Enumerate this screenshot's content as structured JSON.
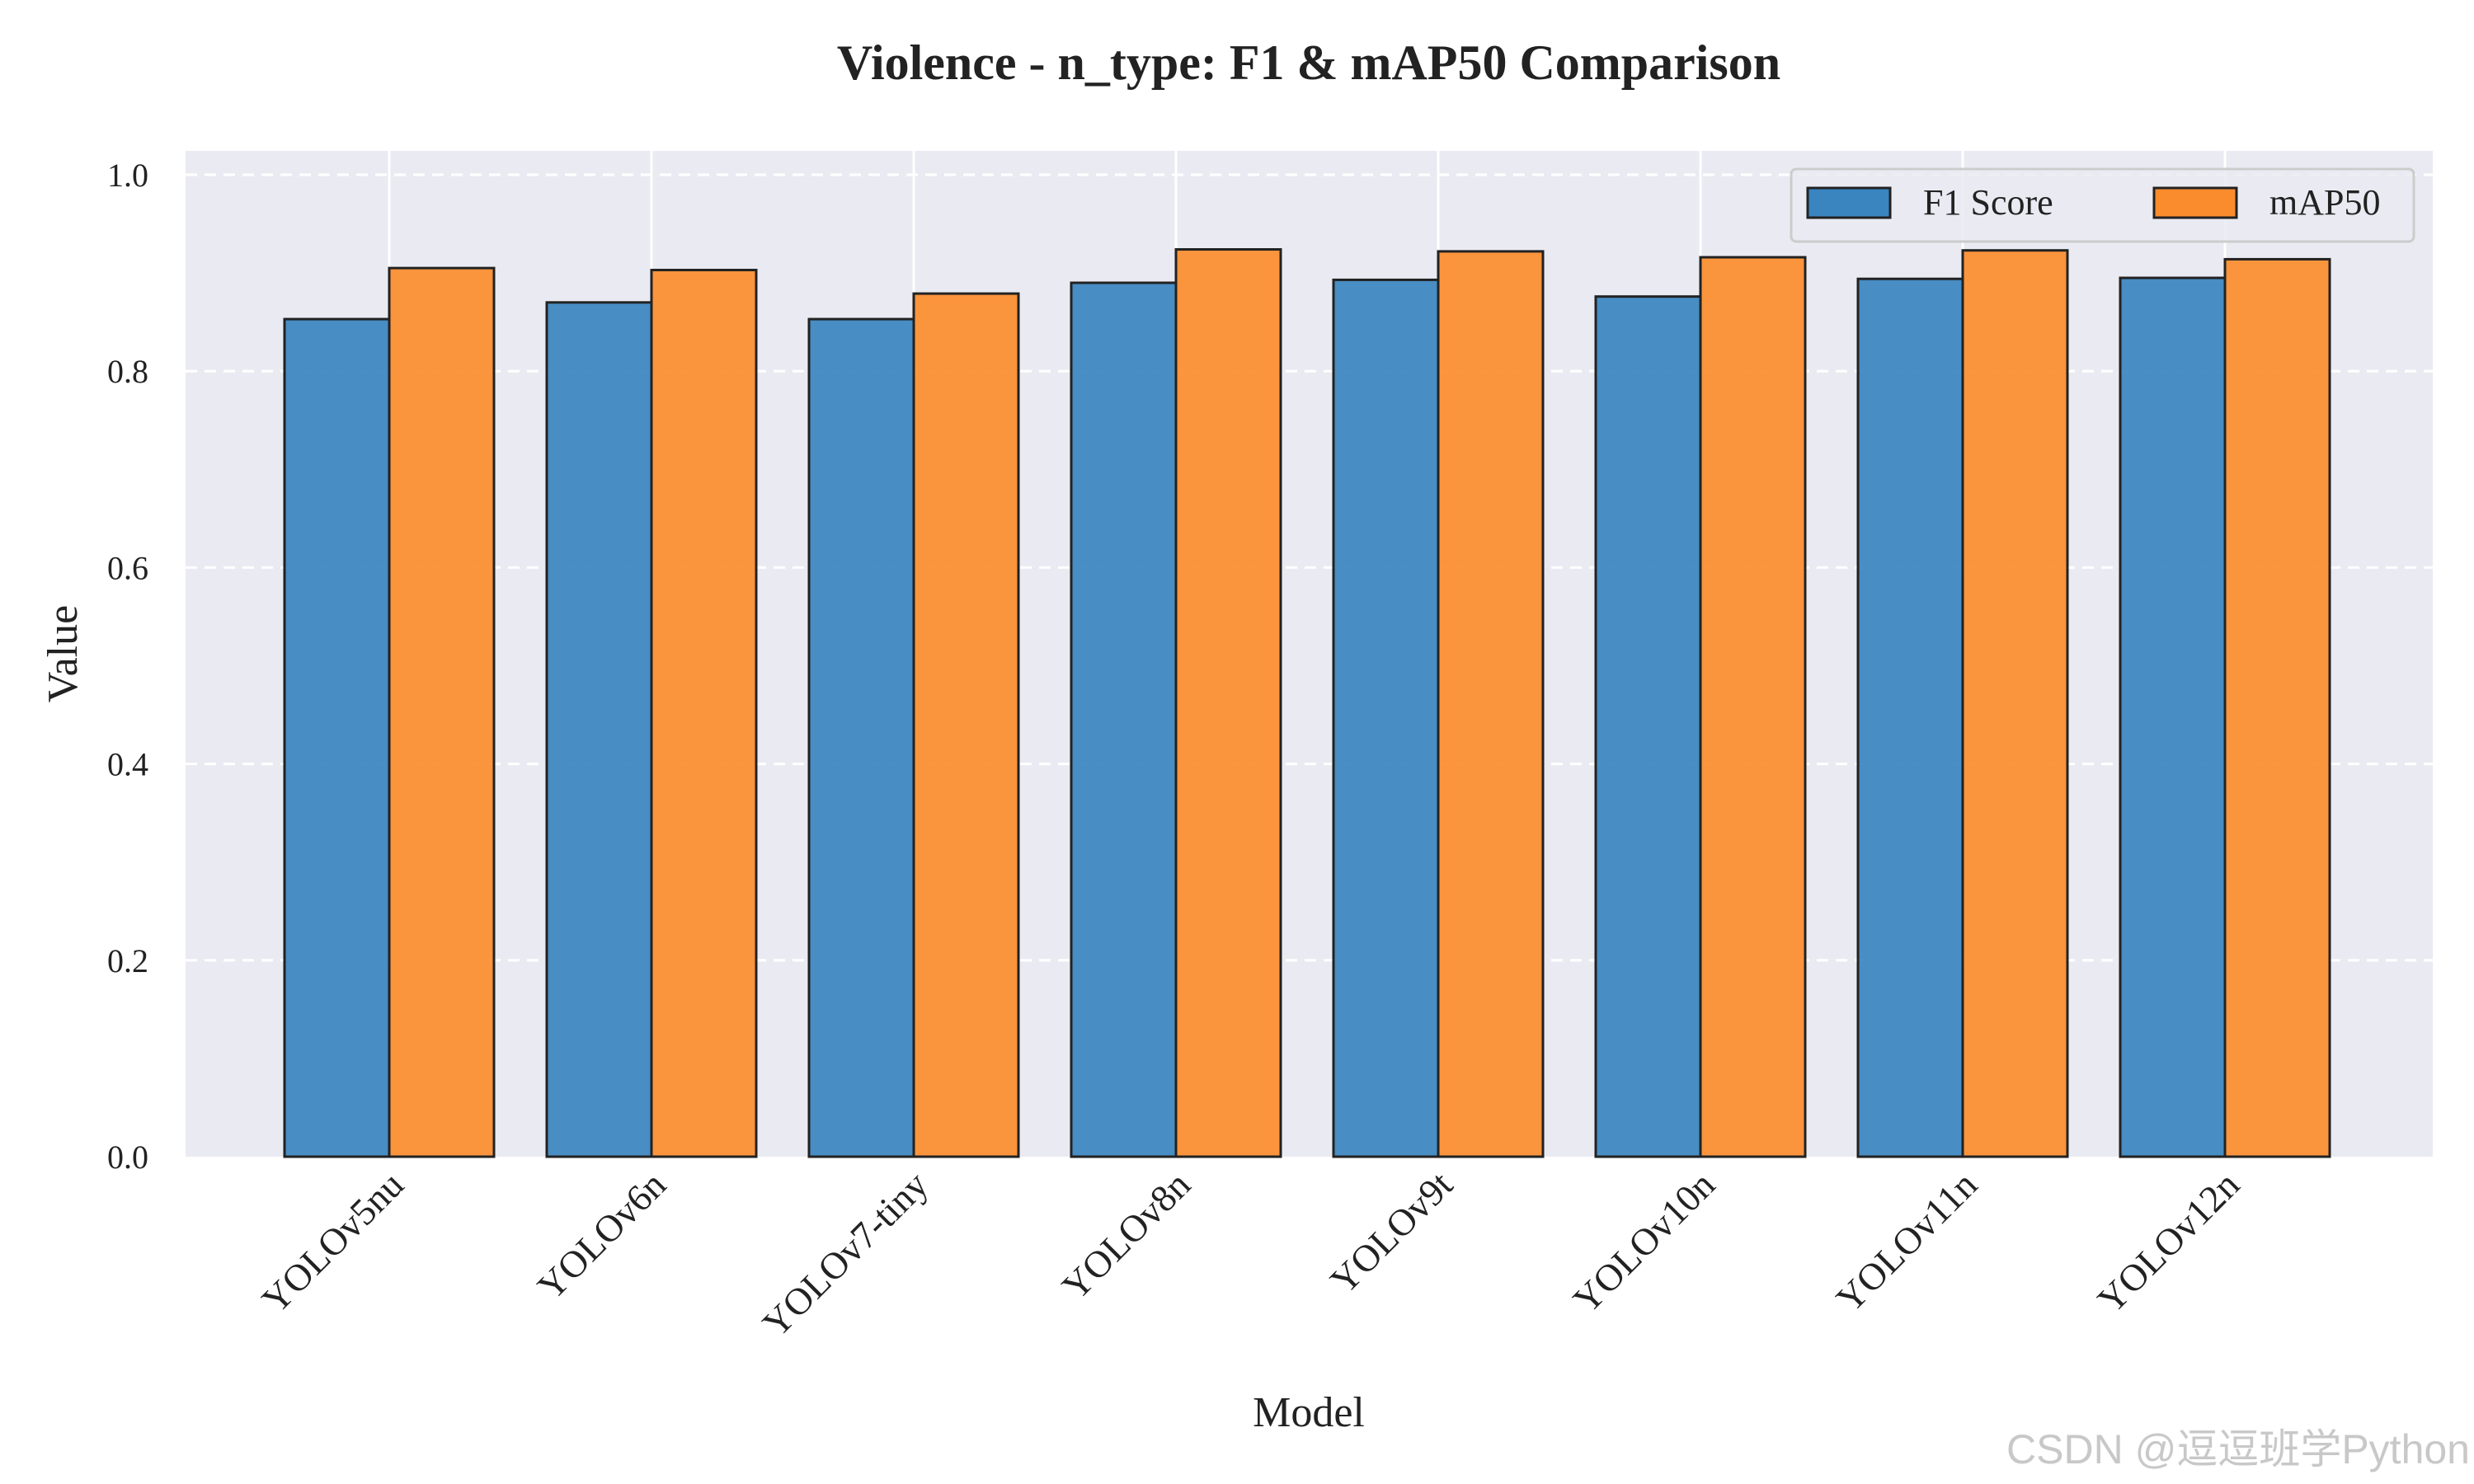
{
  "chart_data": {
    "type": "bar",
    "title": "Violence - n_type: F1 & mAP50 Comparison",
    "xlabel": "Model",
    "ylabel": "Value",
    "ylim": [
      0,
      1.02
    ],
    "yticks": [
      "0.0",
      "0.2",
      "0.4",
      "0.6",
      "0.8",
      "1.0"
    ],
    "categories": [
      "YOLOv5nu",
      "YOLOv6n",
      "YOLOv7-tiny",
      "YOLOv8n",
      "YOLOv9t",
      "YOLOv10n",
      "YOLOv11n",
      "YOLOv12n"
    ],
    "series": [
      {
        "name": "F1 Score",
        "color": "#3a84c0",
        "values": [
          0.853,
          0.87,
          0.853,
          0.89,
          0.893,
          0.876,
          0.894,
          0.895
        ]
      },
      {
        "name": "mAP50",
        "color": "#fb8c2e",
        "values": [
          0.905,
          0.903,
          0.879,
          0.924,
          0.922,
          0.916,
          0.923,
          0.914
        ]
      }
    ],
    "grid": true,
    "legend_position": "top-right",
    "legend_columns": 2
  },
  "watermark": "CSDN @逗逗班学Python"
}
